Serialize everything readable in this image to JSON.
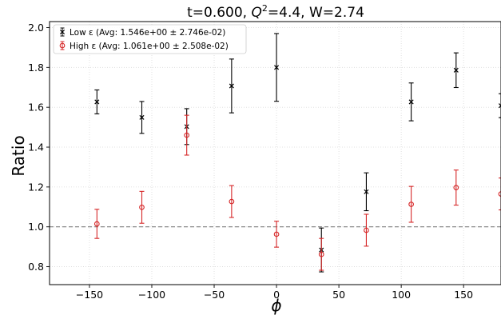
{
  "chart_data": {
    "type": "scatter",
    "title_prefix": "t=0.600, ",
    "title_q": "Q",
    "title_q_exp": "2",
    "title_suffix": "=4.4, W=2.74",
    "xlabel": "ϕ",
    "ylabel": "Ratio",
    "xlim": [
      -182,
      180
    ],
    "ylim": [
      0.71,
      2.03
    ],
    "x_ticks": [
      -150,
      -100,
      -50,
      0,
      50,
      100,
      150
    ],
    "y_ticks": [
      0.8,
      1.0,
      1.2,
      1.4,
      1.6,
      1.8,
      2.0
    ],
    "x_tick_labels": [
      "−150",
      "−100",
      "−50",
      "0",
      "50",
      "100",
      "150"
    ],
    "y_tick_labels": [
      "0.8",
      "1.0",
      "1.2",
      "1.4",
      "1.6",
      "1.8",
      "2.0"
    ],
    "grid": true,
    "legend_position": "top-left",
    "reference_line": {
      "y": 1.0,
      "style": "dashed",
      "color": "#808080"
    },
    "series": [
      {
        "name": "Low ε (Avg: 1.546e+00 ± 2.746e-02)",
        "color": "#000000",
        "marker": "x",
        "x": [
          -144,
          -108,
          -72,
          -36,
          0,
          36,
          72,
          108,
          144,
          180
        ],
        "y": [
          1.627,
          1.549,
          1.503,
          1.707,
          1.8,
          0.884,
          1.176,
          1.627,
          1.786,
          1.608
        ],
        "err": [
          0.06,
          0.08,
          0.09,
          0.135,
          0.17,
          0.11,
          0.095,
          0.095,
          0.087,
          0.06
        ]
      },
      {
        "name": "High ε (Avg: 1.061e+00 ± 2.508e-02)",
        "color": "#d62728",
        "marker": "circle",
        "x": [
          -144,
          -108,
          -72,
          -36,
          0,
          36,
          72,
          108,
          144,
          180
        ],
        "y": [
          1.015,
          1.098,
          1.46,
          1.127,
          0.963,
          0.862,
          0.983,
          1.113,
          1.197,
          1.165
        ],
        "err": [
          0.073,
          0.08,
          0.1,
          0.08,
          0.065,
          0.08,
          0.08,
          0.09,
          0.088,
          0.08
        ]
      }
    ]
  }
}
